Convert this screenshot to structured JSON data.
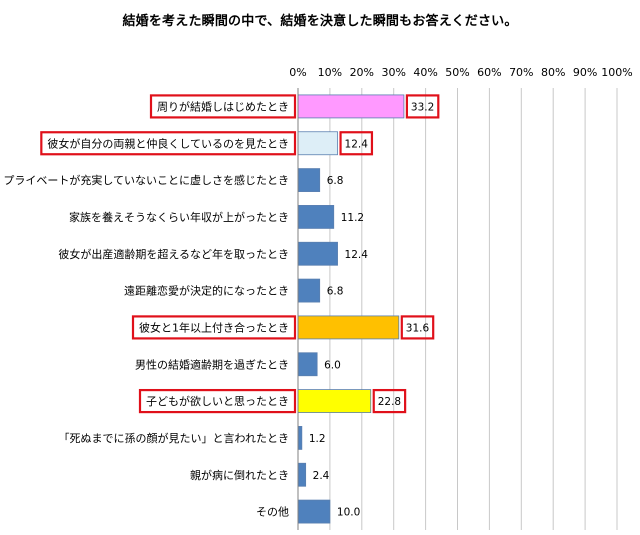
{
  "chart_data": {
    "type": "bar",
    "orientation": "horizontal",
    "title": "結婚を考えた瞬間の中で、結婚を決意した瞬間もお答えください。",
    "xlim": [
      0,
      100
    ],
    "x_ticks": [
      "0%",
      "10%",
      "20%",
      "30%",
      "40%",
      "50%",
      "60%",
      "70%",
      "80%",
      "90%",
      "100%"
    ],
    "grid": true,
    "legend": "none",
    "categories": [
      "周りが結婚しはじめたとき",
      "彼女が自分の両親と仲良くしているのを見たとき",
      "プライベートが充実していないことに虚しさを感じたとき",
      "家族を養えそうなくらい年収が上がったとき",
      "彼女が出産適齢期を超えるなど年を取ったとき",
      "遠距離恋愛が決定的になったとき",
      "彼女と1年以上付き合ったとき",
      "男性の結婚適齢期を過ぎたとき",
      "子どもが欲しいと思ったとき",
      "「死ぬまでに孫の顔が見たい」と言われたとき",
      "親が病に倒れたとき",
      "その他"
    ],
    "values": [
      33.2,
      12.4,
      6.8,
      11.2,
      12.4,
      6.8,
      31.6,
      6.0,
      22.8,
      1.2,
      2.4,
      10.0
    ],
    "value_labels": [
      "33.2",
      "12.4",
      "6.8",
      "11.2",
      "12.4",
      "6.8",
      "31.6",
      "6.0",
      "22.8",
      "1.2",
      "2.4",
      "10.0"
    ],
    "bar_colors": [
      "#FF99FF",
      "#DDEEF7",
      "#4F81BD",
      "#4F81BD",
      "#4F81BD",
      "#4F81BD",
      "#FFC000",
      "#4F81BD",
      "#FFFF00",
      "#4F81BD",
      "#4F81BD",
      "#4F81BD"
    ],
    "highlighted": [
      true,
      true,
      false,
      false,
      false,
      false,
      true,
      false,
      true,
      false,
      false,
      false
    ],
    "highlight_color": "#E0101A"
  }
}
